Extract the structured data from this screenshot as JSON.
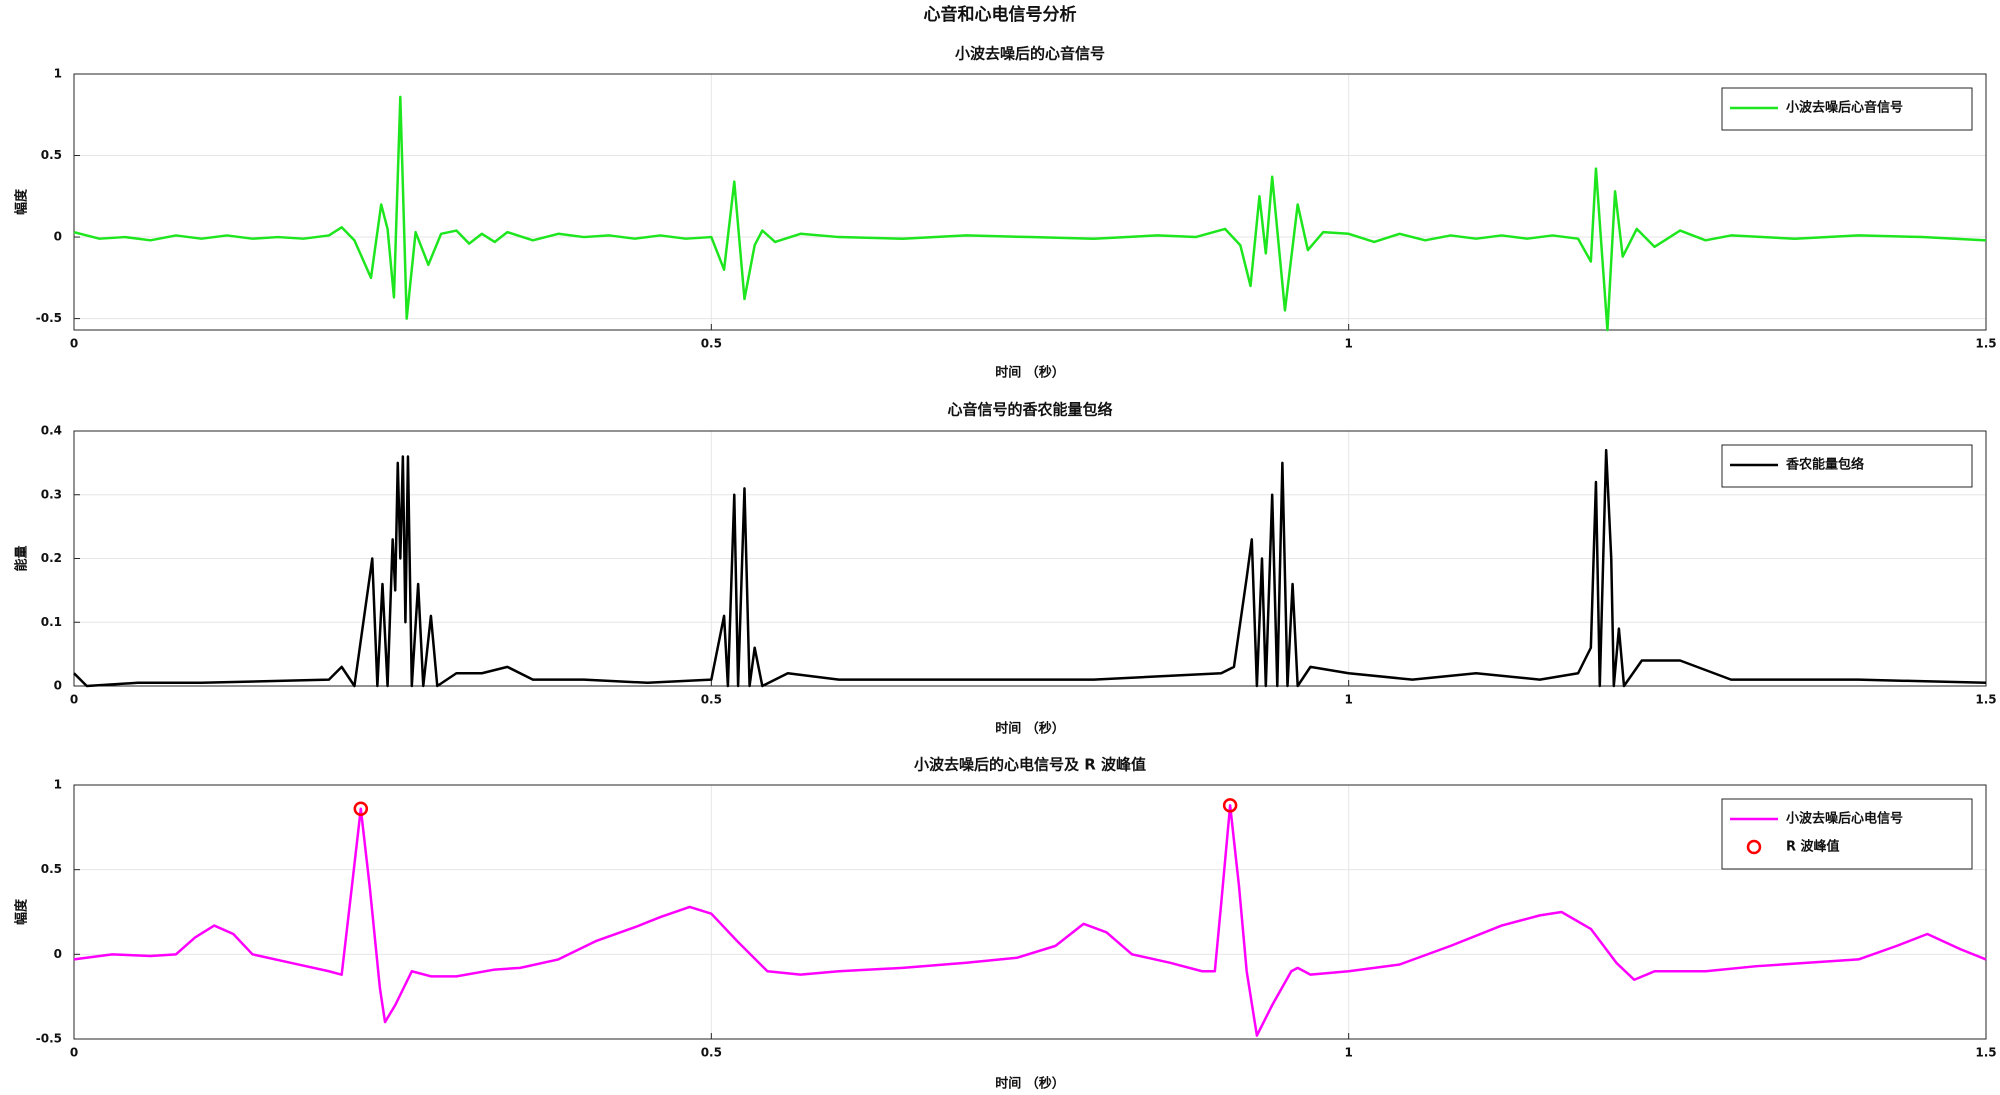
{
  "title": "心音和心电信号分析",
  "chart_data": [
    {
      "type": "line",
      "title": "小波去噪后的心音信号",
      "xlabel": "时间 （秒）",
      "ylabel": "幅度",
      "x": [
        0,
        0.02,
        0.04,
        0.06,
        0.08,
        0.1,
        0.12,
        0.14,
        0.16,
        0.18,
        0.2,
        0.21,
        0.22,
        0.233,
        0.241,
        0.246,
        0.251,
        0.256,
        0.261,
        0.268,
        0.278,
        0.288,
        0.3,
        0.31,
        0.32,
        0.33,
        0.34,
        0.36,
        0.38,
        0.4,
        0.42,
        0.44,
        0.46,
        0.48,
        0.5,
        0.51,
        0.518,
        0.526,
        0.534,
        0.54,
        0.55,
        0.57,
        0.6,
        0.65,
        0.7,
        0.75,
        0.8,
        0.85,
        0.88,
        0.903,
        0.915,
        0.923,
        0.93,
        0.935,
        0.94,
        0.95,
        0.96,
        0.968,
        0.98,
        1.0,
        1.02,
        1.04,
        1.06,
        1.08,
        1.1,
        1.12,
        1.14,
        1.16,
        1.18,
        1.19,
        1.194,
        1.203,
        1.209,
        1.215,
        1.226,
        1.24,
        1.26,
        1.28,
        1.3,
        1.35,
        1.4,
        1.45,
        1.5
      ],
      "series": [
        {
          "name": "小波去噪后心音信号",
          "color": "#1ee61e",
          "values": [
            0.03,
            -0.01,
            0,
            -0.02,
            0.01,
            -0.01,
            0.01,
            -0.01,
            0,
            -0.01,
            0.01,
            0.06,
            -0.02,
            -0.25,
            0.2,
            0.05,
            -0.37,
            0.86,
            -0.5,
            0.03,
            -0.17,
            0.02,
            0.04,
            -0.04,
            0.02,
            -0.03,
            0.03,
            -0.02,
            0.02,
            0,
            0.01,
            -0.01,
            0.01,
            -0.01,
            0,
            -0.2,
            0.34,
            -0.38,
            -0.05,
            0.04,
            -0.03,
            0.02,
            0,
            -0.01,
            0.01,
            0,
            -0.01,
            0.01,
            0,
            0.05,
            -0.05,
            -0.3,
            0.25,
            -0.1,
            0.37,
            -0.45,
            0.2,
            -0.08,
            0.03,
            0.02,
            -0.03,
            0.02,
            -0.02,
            0.01,
            -0.01,
            0.01,
            -0.01,
            0.01,
            -0.01,
            -0.15,
            0.42,
            -0.57,
            0.28,
            -0.12,
            0.05,
            -0.06,
            0.04,
            -0.02,
            0.01,
            -0.01,
            0.01,
            0,
            -0.02
          ]
        }
      ],
      "xlim": [
        0,
        1.5
      ],
      "xticks": [
        0,
        0.5,
        1,
        1.5
      ],
      "ylim": [
        -0.57,
        1
      ],
      "yticks": [
        -0.5,
        0,
        0.5,
        1
      ],
      "grid": true,
      "legend": "upper right"
    },
    {
      "type": "line",
      "title": "心音信号的香农能量包络",
      "xlabel": "时间 （秒）",
      "ylabel": "能量",
      "x": [
        0,
        0.01,
        0.05,
        0.1,
        0.2,
        0.21,
        0.22,
        0.234,
        0.238,
        0.242,
        0.246,
        0.25,
        0.252,
        0.254,
        0.256,
        0.258,
        0.26,
        0.262,
        0.265,
        0.27,
        0.274,
        0.28,
        0.285,
        0.3,
        0.32,
        0.34,
        0.36,
        0.4,
        0.45,
        0.5,
        0.51,
        0.513,
        0.518,
        0.521,
        0.526,
        0.53,
        0.534,
        0.54,
        0.56,
        0.6,
        0.7,
        0.8,
        0.9,
        0.91,
        0.92,
        0.924,
        0.928,
        0.932,
        0.935,
        0.94,
        0.944,
        0.948,
        0.952,
        0.956,
        0.96,
        0.97,
        1.0,
        1.05,
        1.1,
        1.15,
        1.18,
        1.19,
        1.194,
        1.197,
        1.202,
        1.206,
        1.208,
        1.212,
        1.216,
        1.23,
        1.26,
        1.3,
        1.35,
        1.4,
        1.5
      ],
      "series": [
        {
          "name": "香农能量包络",
          "color": "#000000",
          "values": [
            0.02,
            0,
            0.005,
            0.005,
            0.01,
            0.03,
            0,
            0.2,
            0,
            0.16,
            0,
            0.23,
            0.15,
            0.35,
            0.2,
            0.36,
            0.1,
            0.36,
            0,
            0.16,
            0,
            0.11,
            0,
            0.02,
            0.02,
            0.03,
            0.01,
            0.01,
            0.005,
            0.01,
            0.11,
            0,
            0.3,
            0,
            0.31,
            0,
            0.06,
            0,
            0.02,
            0.01,
            0.01,
            0.01,
            0.02,
            0.03,
            0.17,
            0.23,
            0,
            0.2,
            0,
            0.3,
            0,
            0.35,
            0,
            0.16,
            0,
            0.03,
            0.02,
            0.01,
            0.02,
            0.01,
            0.02,
            0.06,
            0.32,
            0,
            0.37,
            0.2,
            0,
            0.09,
            0,
            0.04,
            0.04,
            0.01,
            0.01,
            0.01,
            0.005
          ]
        }
      ],
      "xlim": [
        0,
        1.5
      ],
      "xticks": [
        0,
        0.5,
        1,
        1.5
      ],
      "ylim": [
        0,
        0.4
      ],
      "yticks": [
        0,
        0.1,
        0.2,
        0.3,
        0.4
      ],
      "grid": true,
      "legend": "upper right"
    },
    {
      "type": "line",
      "title": "小波去噪后的心电信号及 R 波峰值",
      "xlabel": "时间 （秒）",
      "ylabel": "幅度",
      "x": [
        0,
        0.03,
        0.06,
        0.08,
        0.095,
        0.11,
        0.125,
        0.14,
        0.17,
        0.2,
        0.21,
        0.218,
        0.225,
        0.232,
        0.24,
        0.244,
        0.252,
        0.265,
        0.28,
        0.3,
        0.33,
        0.35,
        0.38,
        0.41,
        0.44,
        0.46,
        0.483,
        0.5,
        0.52,
        0.544,
        0.57,
        0.6,
        0.65,
        0.7,
        0.74,
        0.77,
        0.792,
        0.81,
        0.83,
        0.86,
        0.885,
        0.895,
        0.9,
        0.907,
        0.914,
        0.92,
        0.928,
        0.94,
        0.955,
        0.96,
        0.97,
        1.0,
        1.04,
        1.08,
        1.12,
        1.15,
        1.167,
        1.19,
        1.21,
        1.224,
        1.24,
        1.28,
        1.32,
        1.36,
        1.4,
        1.43,
        1.454,
        1.48,
        1.5
      ],
      "series": [
        {
          "name": "小波去噪后心电信号",
          "color": "#ff00ff",
          "values": [
            -0.03,
            0,
            -0.01,
            0,
            0.1,
            0.17,
            0.12,
            0,
            -0.05,
            -0.1,
            -0.12,
            0.4,
            0.86,
            0.4,
            -0.2,
            -0.4,
            -0.3,
            -0.1,
            -0.13,
            -0.13,
            -0.09,
            -0.08,
            -0.03,
            0.08,
            0.16,
            0.22,
            0.28,
            0.24,
            0.08,
            -0.1,
            -0.12,
            -0.1,
            -0.08,
            -0.05,
            -0.02,
            0.05,
            0.18,
            0.13,
            0,
            -0.05,
            -0.1,
            -0.1,
            0.3,
            0.88,
            0.4,
            -0.1,
            -0.48,
            -0.3,
            -0.1,
            -0.08,
            -0.12,
            -0.1,
            -0.06,
            0.05,
            0.17,
            0.23,
            0.25,
            0.15,
            -0.05,
            -0.15,
            -0.1,
            -0.1,
            -0.07,
            -0.05,
            -0.03,
            0.05,
            0.12,
            0.03,
            -0.03
          ]
        },
        {
          "name": "R 波峰值",
          "color": "#ff0000",
          "marker": "o",
          "x": [
            0.225,
            0.907
          ],
          "values": [
            0.86,
            0.88
          ]
        }
      ],
      "xlim": [
        0,
        1.5
      ],
      "xticks": [
        0,
        0.5,
        1,
        1.5
      ],
      "ylim": [
        -0.5,
        1
      ],
      "yticks": [
        -0.5,
        0,
        0.5,
        1
      ],
      "grid": true,
      "legend": "upper right"
    }
  ]
}
